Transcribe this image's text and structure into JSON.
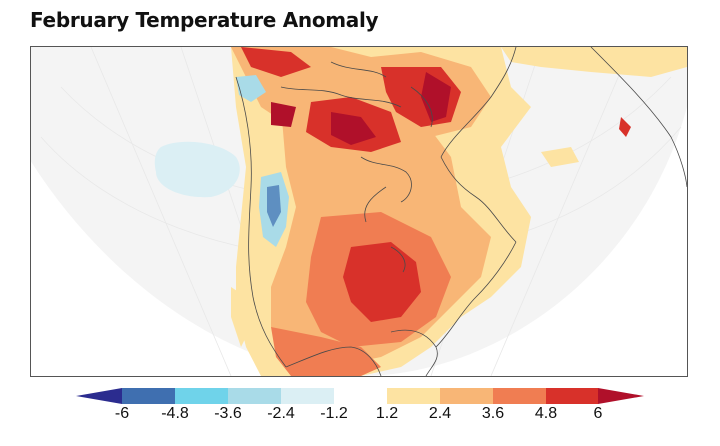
{
  "title": "February Temperature Anomaly",
  "colorbar": {
    "ticks": [
      "-6",
      "-4.8",
      "-3.6",
      "-2.4",
      "-1.2",
      "1.2",
      "2.4",
      "3.6",
      "4.8",
      "6"
    ],
    "low_extend_color": "#2b2c8f",
    "high_extend_color": "#b0102a",
    "bin_colors": [
      "#3f6fb0",
      "#6fd3ea",
      "#a9dbe8",
      "#dbeff4",
      "#ffffff",
      "#fde3a2",
      "#f8b676",
      "#f07d52",
      "#d8312a"
    ]
  },
  "map": {
    "projection": "polar-conic",
    "region": "North America",
    "ocean_color": "#f4f4f4",
    "coastline_color": "#4a4a4a"
  }
}
